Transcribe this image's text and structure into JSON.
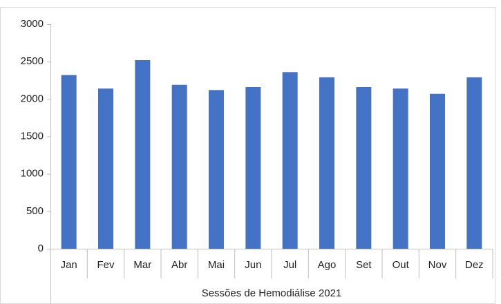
{
  "chart_data": {
    "type": "bar",
    "x_label": "Sessões de Hemodiálise 2021",
    "categories": [
      "Jan",
      "Fev",
      "Mar",
      "Abr",
      "Mai",
      "Jun",
      "Jul",
      "Ago",
      "Set",
      "Out",
      "Nov",
      "Dez"
    ],
    "values": [
      2320,
      2140,
      2520,
      2190,
      2120,
      2160,
      2360,
      2290,
      2160,
      2140,
      2070,
      2290
    ],
    "color": "#4472c4",
    "ylim": [
      0,
      3000
    ],
    "yticks": [
      0,
      500,
      1000,
      1500,
      2000,
      2500,
      3000
    ],
    "grid": false
  }
}
